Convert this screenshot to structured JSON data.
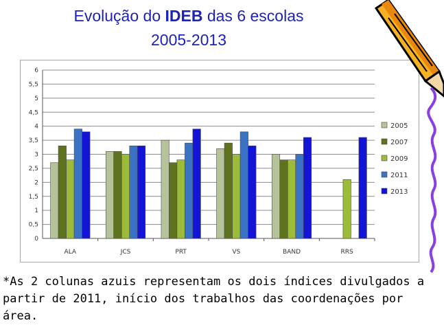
{
  "title": {
    "prefix": "Evolução do ",
    "bold": "IDEB",
    "suffix": " das 6 escolas",
    "years": "2005-2013"
  },
  "footnote": {
    "line1": "*As 2 colunas azuis representam os dois índices divulgados a",
    "line2": "partir de 2011, início dos trabalhos das coordenações por área."
  },
  "chart_data": {
    "type": "bar",
    "title": "",
    "xlabel": "",
    "ylabel": "",
    "ylim": [
      0,
      6
    ],
    "yticks": [
      "0",
      "0,5",
      "1",
      "1,5",
      "2",
      "2,5",
      "3",
      "3,5",
      "4",
      "4,5",
      "5",
      "5,5",
      "6"
    ],
    "grid": true,
    "legend_position": "right",
    "categories": [
      "ALA",
      "JCS",
      "PRT",
      "VS",
      "BAND",
      "RRS"
    ],
    "series": [
      {
        "name": "2005",
        "color": "#b5c29a",
        "values": [
          2.7,
          3.1,
          3.5,
          3.2,
          3.0,
          null
        ]
      },
      {
        "name": "2007",
        "color": "#5f731f",
        "values": [
          3.3,
          3.1,
          2.7,
          3.4,
          2.8,
          null
        ]
      },
      {
        "name": "2009",
        "color": "#9dbb3b",
        "values": [
          2.8,
          3.0,
          2.8,
          3.0,
          2.8,
          2.1
        ]
      },
      {
        "name": "2011",
        "color": "#3a73c4",
        "values": [
          3.9,
          3.3,
          3.4,
          3.8,
          3.0,
          null
        ]
      },
      {
        "name": "2013",
        "color": "#1414d6",
        "values": [
          3.8,
          3.3,
          3.9,
          3.3,
          3.6,
          3.6
        ]
      }
    ]
  }
}
